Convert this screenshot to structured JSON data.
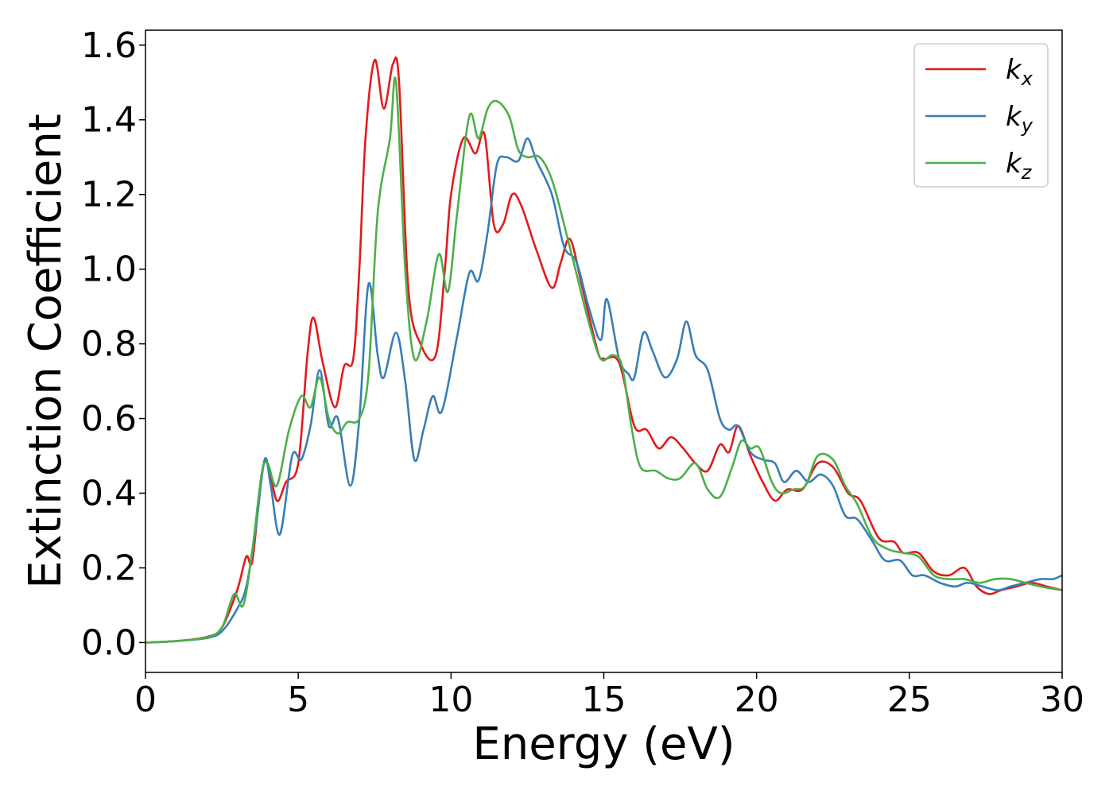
{
  "chart_data": {
    "type": "line",
    "title": "",
    "xlabel": "Energy (eV)",
    "ylabel": "Extinction Coefficient",
    "xlim": [
      0,
      30
    ],
    "ylim": [
      -0.08,
      1.64
    ],
    "xticks": [
      0,
      5,
      10,
      15,
      20,
      25,
      30
    ],
    "xtick_labels": [
      "0",
      "5",
      "10",
      "15",
      "20",
      "25",
      "30"
    ],
    "yticks": [
      0.0,
      0.2,
      0.4,
      0.6,
      0.8,
      1.0,
      1.2,
      1.4,
      1.6
    ],
    "ytick_labels": [
      "0.0",
      "0.2",
      "0.4",
      "0.6",
      "0.8",
      "1.0",
      "1.2",
      "1.4",
      "1.6"
    ],
    "grid": false,
    "legend_position": "top-right",
    "series": [
      {
        "name": "k_x",
        "label_main": "k",
        "label_sub": "x",
        "color": "#e41a1c",
        "points": [
          [
            0,
            0
          ],
          [
            1,
            0.004
          ],
          [
            2,
            0.015
          ],
          [
            2.5,
            0.04
          ],
          [
            3,
            0.14
          ],
          [
            3.3,
            0.23
          ],
          [
            3.5,
            0.22
          ],
          [
            3.8,
            0.45
          ],
          [
            4,
            0.48
          ],
          [
            4.3,
            0.38
          ],
          [
            4.6,
            0.43
          ],
          [
            5,
            0.48
          ],
          [
            5.3,
            0.77
          ],
          [
            5.5,
            0.87
          ],
          [
            5.8,
            0.75
          ],
          [
            6.2,
            0.63
          ],
          [
            6.5,
            0.74
          ],
          [
            6.8,
            0.76
          ],
          [
            7,
            1.0
          ],
          [
            7.2,
            1.35
          ],
          [
            7.5,
            1.56
          ],
          [
            7.8,
            1.43
          ],
          [
            8.1,
            1.55
          ],
          [
            8.3,
            1.5
          ],
          [
            8.6,
            0.95
          ],
          [
            9,
            0.8
          ],
          [
            9.5,
            0.77
          ],
          [
            9.8,
            1.0
          ],
          [
            10,
            1.2
          ],
          [
            10.4,
            1.35
          ],
          [
            10.8,
            1.31
          ],
          [
            11.1,
            1.36
          ],
          [
            11.4,
            1.12
          ],
          [
            11.7,
            1.12
          ],
          [
            12,
            1.2
          ],
          [
            12.3,
            1.17
          ],
          [
            12.8,
            1.05
          ],
          [
            13.3,
            0.95
          ],
          [
            13.6,
            1.02
          ],
          [
            13.9,
            1.08
          ],
          [
            14.3,
            0.95
          ],
          [
            14.8,
            0.78
          ],
          [
            15,
            0.76
          ],
          [
            15.5,
            0.75
          ],
          [
            16,
            0.58
          ],
          [
            16.4,
            0.57
          ],
          [
            16.8,
            0.52
          ],
          [
            17.2,
            0.55
          ],
          [
            17.6,
            0.52
          ],
          [
            18,
            0.48
          ],
          [
            18.4,
            0.46
          ],
          [
            18.8,
            0.53
          ],
          [
            19.1,
            0.51
          ],
          [
            19.4,
            0.58
          ],
          [
            19.8,
            0.5
          ],
          [
            20.2,
            0.43
          ],
          [
            20.6,
            0.38
          ],
          [
            21,
            0.41
          ],
          [
            21.5,
            0.41
          ],
          [
            22,
            0.48
          ],
          [
            22.5,
            0.47
          ],
          [
            23,
            0.4
          ],
          [
            23.4,
            0.38
          ],
          [
            24,
            0.28
          ],
          [
            24.5,
            0.27
          ],
          [
            24.8,
            0.24
          ],
          [
            25.3,
            0.24
          ],
          [
            25.8,
            0.19
          ],
          [
            26.3,
            0.18
          ],
          [
            26.8,
            0.2
          ],
          [
            27.2,
            0.15
          ],
          [
            27.6,
            0.13
          ],
          [
            28,
            0.14
          ],
          [
            28.5,
            0.15
          ],
          [
            29,
            0.16
          ],
          [
            29.5,
            0.15
          ],
          [
            30,
            0.14
          ]
        ]
      },
      {
        "name": "k_y",
        "label_main": "k",
        "label_sub": "y",
        "color": "#377eb8",
        "points": [
          [
            0,
            0
          ],
          [
            1,
            0.004
          ],
          [
            2,
            0.012
          ],
          [
            2.5,
            0.03
          ],
          [
            3,
            0.09
          ],
          [
            3.3,
            0.15
          ],
          [
            3.6,
            0.3
          ],
          [
            3.9,
            0.49
          ],
          [
            4.1,
            0.42
          ],
          [
            4.4,
            0.29
          ],
          [
            4.8,
            0.5
          ],
          [
            5.1,
            0.49
          ],
          [
            5.4,
            0.58
          ],
          [
            5.7,
            0.73
          ],
          [
            6,
            0.58
          ],
          [
            6.3,
            0.6
          ],
          [
            6.7,
            0.42
          ],
          [
            7,
            0.6
          ],
          [
            7.3,
            0.96
          ],
          [
            7.6,
            0.77
          ],
          [
            7.8,
            0.71
          ],
          [
            8.2,
            0.83
          ],
          [
            8.5,
            0.7
          ],
          [
            8.8,
            0.49
          ],
          [
            9.1,
            0.57
          ],
          [
            9.4,
            0.66
          ],
          [
            9.7,
            0.62
          ],
          [
            10.2,
            0.82
          ],
          [
            10.6,
            0.99
          ],
          [
            10.9,
            0.97
          ],
          [
            11.2,
            1.1
          ],
          [
            11.5,
            1.28
          ],
          [
            11.8,
            1.3
          ],
          [
            12.2,
            1.29
          ],
          [
            12.5,
            1.35
          ],
          [
            12.8,
            1.29
          ],
          [
            13.3,
            1.2
          ],
          [
            13.7,
            1.06
          ],
          [
            14.1,
            1.02
          ],
          [
            14.5,
            0.9
          ],
          [
            14.9,
            0.81
          ],
          [
            15.1,
            0.92
          ],
          [
            15.5,
            0.76
          ],
          [
            15.8,
            0.72
          ],
          [
            16,
            0.71
          ],
          [
            16.3,
            0.83
          ],
          [
            16.6,
            0.78
          ],
          [
            17,
            0.71
          ],
          [
            17.4,
            0.76
          ],
          [
            17.7,
            0.86
          ],
          [
            18,
            0.77
          ],
          [
            18.4,
            0.73
          ],
          [
            18.8,
            0.6
          ],
          [
            19.1,
            0.57
          ],
          [
            19.4,
            0.58
          ],
          [
            19.8,
            0.51
          ],
          [
            20.2,
            0.49
          ],
          [
            20.6,
            0.48
          ],
          [
            20.9,
            0.43
          ],
          [
            21.3,
            0.46
          ],
          [
            21.7,
            0.43
          ],
          [
            22.1,
            0.45
          ],
          [
            22.5,
            0.42
          ],
          [
            22.9,
            0.34
          ],
          [
            23.3,
            0.33
          ],
          [
            23.8,
            0.27
          ],
          [
            24.2,
            0.22
          ],
          [
            24.7,
            0.22
          ],
          [
            25.1,
            0.18
          ],
          [
            25.5,
            0.18
          ],
          [
            26,
            0.16
          ],
          [
            26.5,
            0.15
          ],
          [
            26.9,
            0.16
          ],
          [
            27.4,
            0.15
          ],
          [
            27.9,
            0.14
          ],
          [
            28.3,
            0.15
          ],
          [
            28.8,
            0.16
          ],
          [
            29.3,
            0.17
          ],
          [
            29.7,
            0.17
          ],
          [
            30,
            0.18
          ]
        ]
      },
      {
        "name": "k_z",
        "label_main": "k",
        "label_sub": "z",
        "color": "#4daf4a",
        "points": [
          [
            0,
            0
          ],
          [
            1,
            0.004
          ],
          [
            2,
            0.014
          ],
          [
            2.5,
            0.04
          ],
          [
            2.9,
            0.13
          ],
          [
            3.2,
            0.1
          ],
          [
            3.5,
            0.25
          ],
          [
            3.8,
            0.45
          ],
          [
            4,
            0.48
          ],
          [
            4.3,
            0.42
          ],
          [
            4.7,
            0.57
          ],
          [
            5.1,
            0.66
          ],
          [
            5.4,
            0.63
          ],
          [
            5.7,
            0.71
          ],
          [
            6,
            0.6
          ],
          [
            6.3,
            0.56
          ],
          [
            6.6,
            0.59
          ],
          [
            7,
            0.6
          ],
          [
            7.3,
            0.72
          ],
          [
            7.6,
            1.15
          ],
          [
            8,
            1.35
          ],
          [
            8.2,
            1.5
          ],
          [
            8.5,
            1.0
          ],
          [
            8.8,
            0.76
          ],
          [
            9.2,
            0.86
          ],
          [
            9.6,
            1.04
          ],
          [
            9.9,
            0.94
          ],
          [
            10.2,
            1.15
          ],
          [
            10.6,
            1.41
          ],
          [
            10.9,
            1.35
          ],
          [
            11.2,
            1.43
          ],
          [
            11.5,
            1.45
          ],
          [
            11.9,
            1.41
          ],
          [
            12.2,
            1.32
          ],
          [
            12.5,
            1.3
          ],
          [
            12.9,
            1.3
          ],
          [
            13.3,
            1.24
          ],
          [
            13.7,
            1.12
          ],
          [
            14.1,
            0.99
          ],
          [
            14.5,
            0.86
          ],
          [
            14.9,
            0.76
          ],
          [
            15.3,
            0.77
          ],
          [
            15.6,
            0.74
          ],
          [
            15.9,
            0.58
          ],
          [
            16.2,
            0.47
          ],
          [
            16.7,
            0.46
          ],
          [
            17.1,
            0.44
          ],
          [
            17.5,
            0.44
          ],
          [
            18,
            0.48
          ],
          [
            18.4,
            0.41
          ],
          [
            18.8,
            0.39
          ],
          [
            19.2,
            0.47
          ],
          [
            19.5,
            0.54
          ],
          [
            19.8,
            0.52
          ],
          [
            20.1,
            0.52
          ],
          [
            20.5,
            0.43
          ],
          [
            20.8,
            0.4
          ],
          [
            21.2,
            0.41
          ],
          [
            21.6,
            0.42
          ],
          [
            22,
            0.5
          ],
          [
            22.5,
            0.49
          ],
          [
            22.9,
            0.42
          ],
          [
            23.3,
            0.37
          ],
          [
            23.8,
            0.28
          ],
          [
            24.3,
            0.25
          ],
          [
            24.8,
            0.24
          ],
          [
            25.3,
            0.23
          ],
          [
            25.8,
            0.18
          ],
          [
            26.3,
            0.17
          ],
          [
            26.8,
            0.17
          ],
          [
            27.3,
            0.16
          ],
          [
            27.8,
            0.17
          ],
          [
            28.3,
            0.17
          ],
          [
            28.8,
            0.16
          ],
          [
            29.3,
            0.15
          ],
          [
            30,
            0.14
          ]
        ]
      }
    ]
  }
}
